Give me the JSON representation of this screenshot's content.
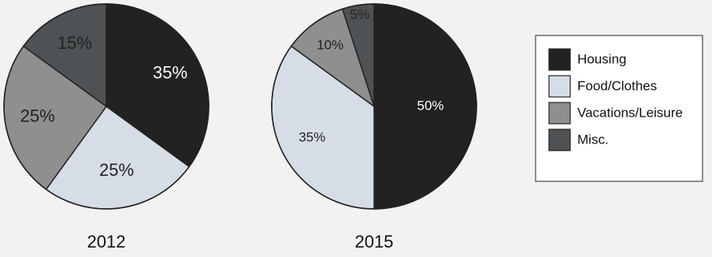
{
  "chart_data": [
    {
      "type": "pie",
      "title": "2012",
      "categories": [
        "Housing",
        "Food/Clothes",
        "Vacations/Leisure",
        "Misc."
      ],
      "values": [
        35,
        25,
        25,
        15
      ],
      "labels": [
        "35%",
        "25%",
        "25%",
        "15%"
      ],
      "start": "12 o'clock",
      "direction": "clockwise"
    },
    {
      "type": "pie",
      "title": "2015",
      "categories": [
        "Housing",
        "Food/Clothes",
        "Vacations/Leisure",
        "Misc."
      ],
      "values": [
        50,
        35,
        10,
        5
      ],
      "labels": [
        "50%",
        "35%",
        "10%",
        "5%"
      ],
      "start": "12 o'clock",
      "direction": "clockwise"
    }
  ],
  "legend": {
    "placement": "right",
    "items": [
      {
        "label": "Housing",
        "color": "#222222"
      },
      {
        "label": "Food/Clothes",
        "color": "#d6dde6"
      },
      {
        "label": "Vacations/Leisure",
        "color": "#8f8f8f"
      },
      {
        "label": "Misc.",
        "color": "#4f5254"
      }
    ]
  },
  "label_colors": [
    "#ffffff",
    "#222222",
    "#222222",
    "#222222"
  ]
}
